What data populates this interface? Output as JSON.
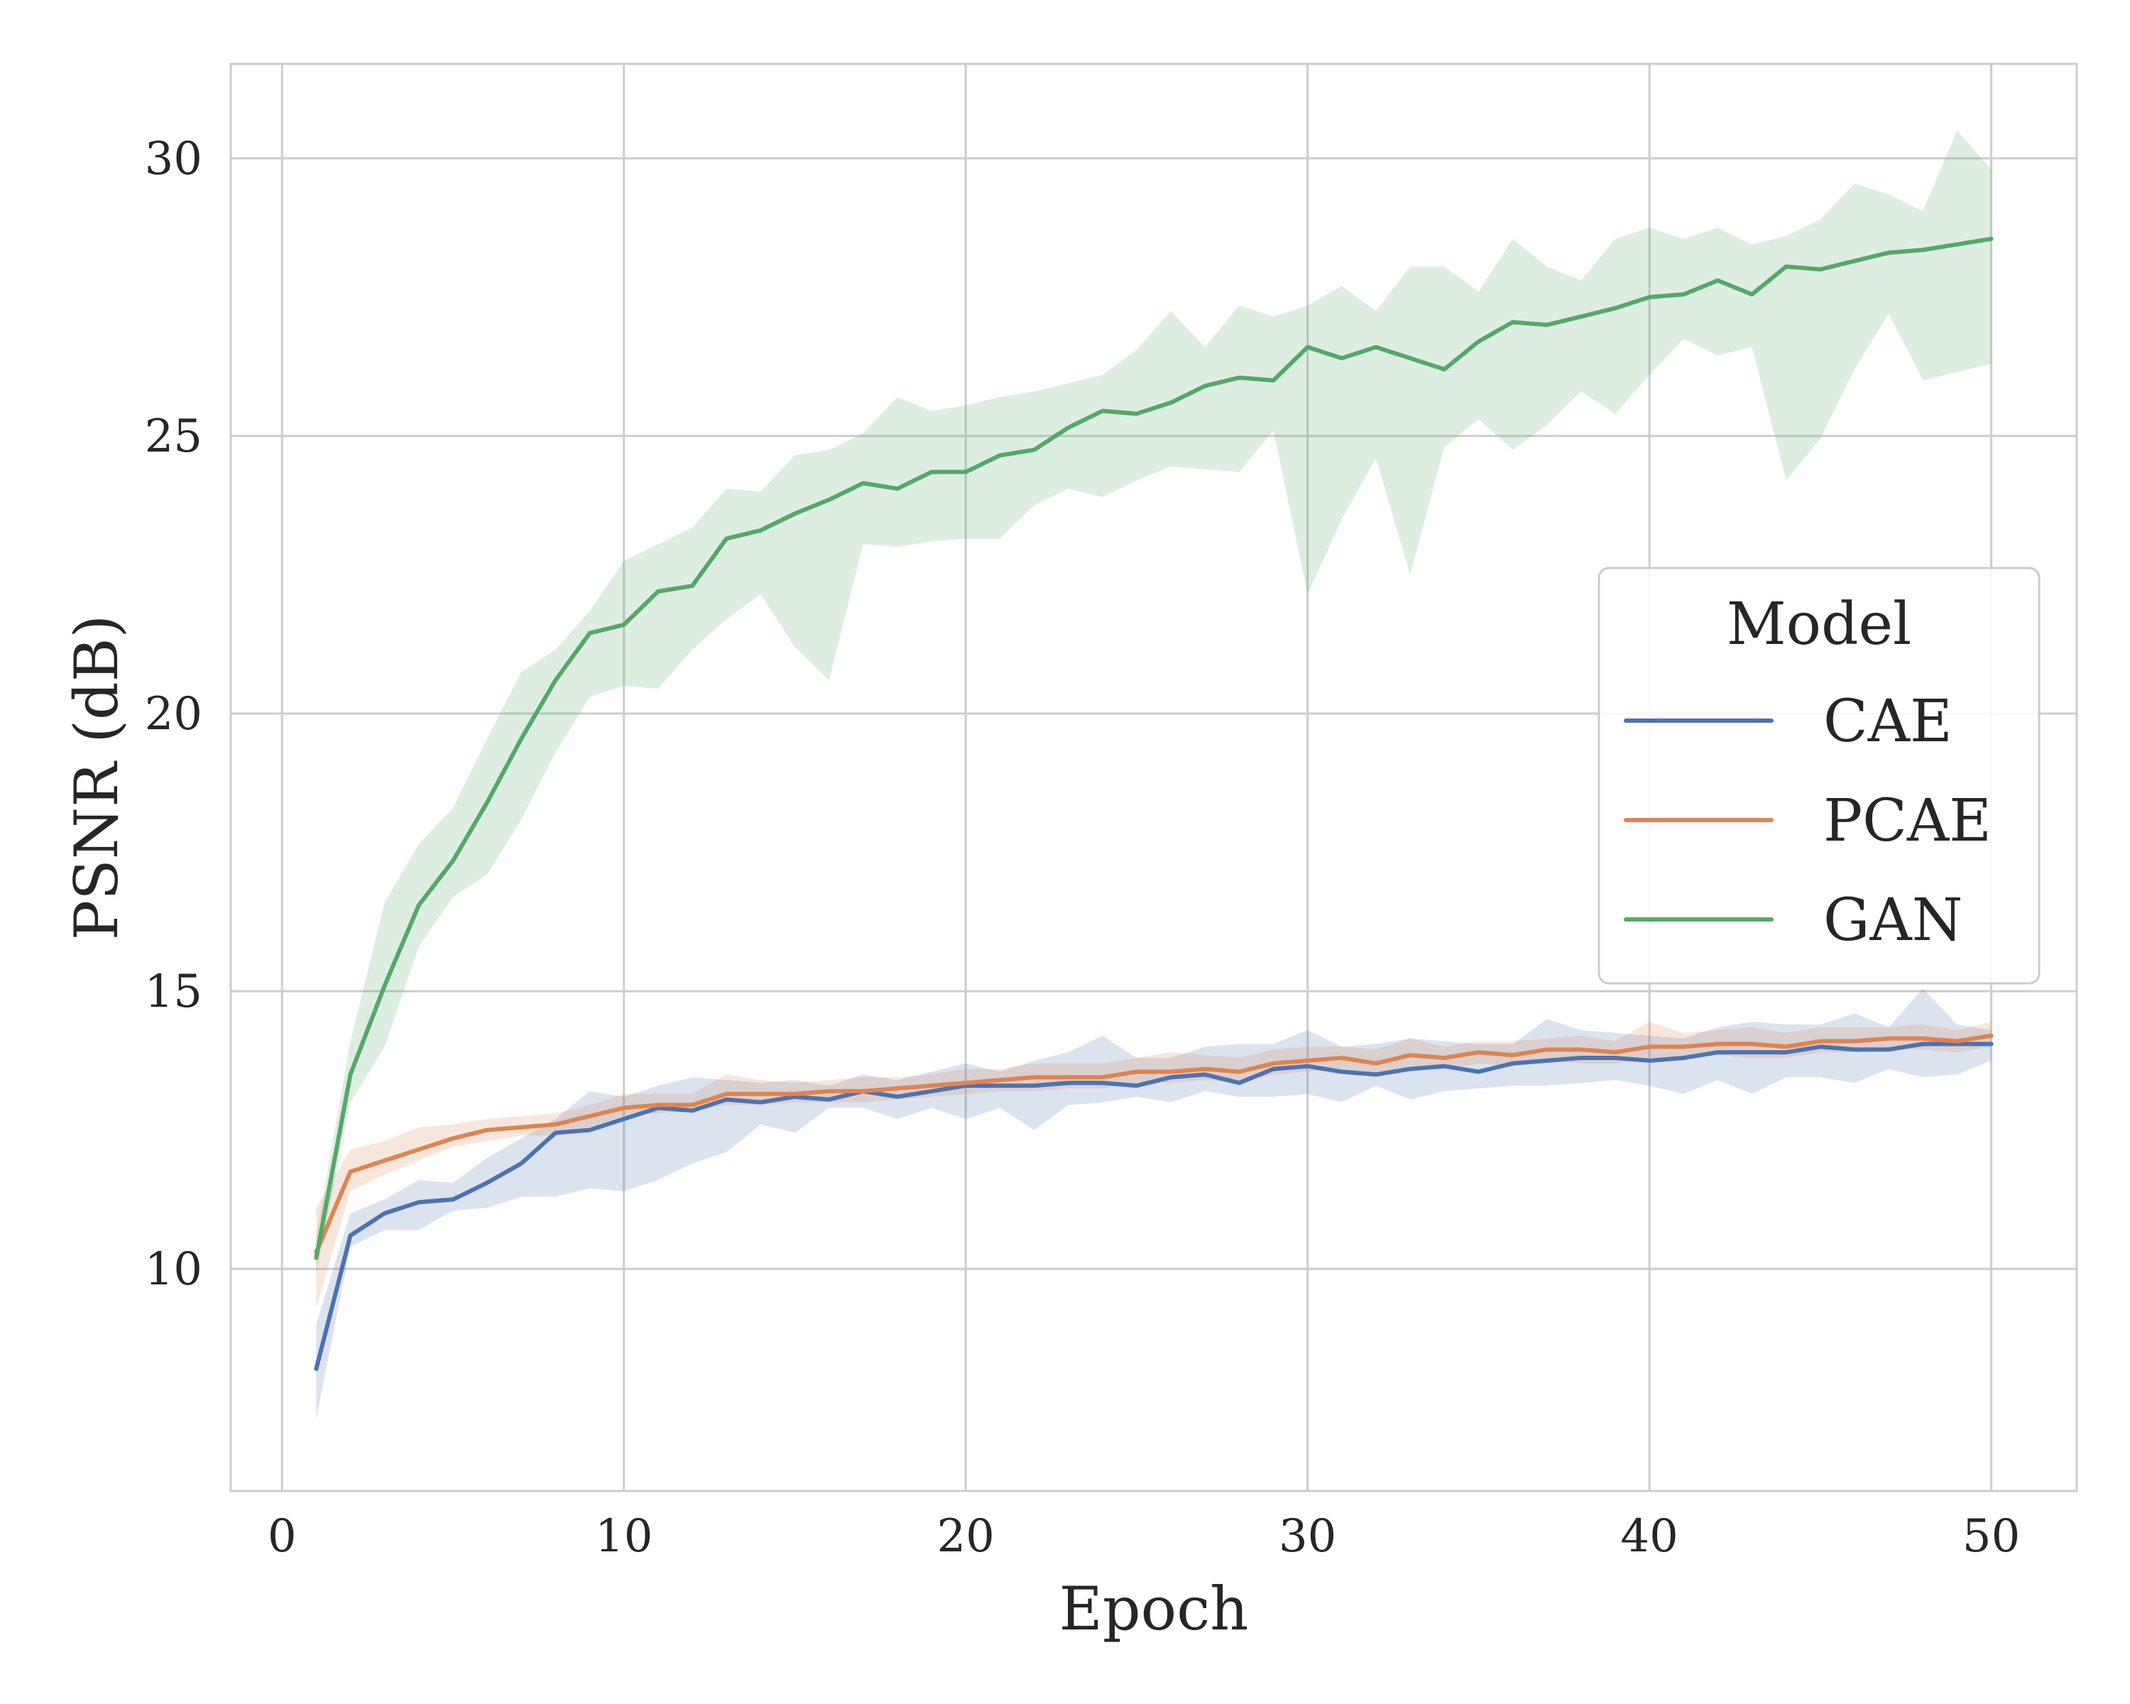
{
  "chart_data": {
    "type": "line",
    "xlabel": "Epoch",
    "ylabel": "PSNR (dB)",
    "xlim": [
      -1.5,
      52.5
    ],
    "ylim": [
      6.0,
      31.7
    ],
    "xticks": [
      0,
      10,
      20,
      30,
      40,
      50
    ],
    "yticks": [
      10,
      15,
      20,
      25,
      30
    ],
    "grid": true,
    "legend": {
      "title": "Model",
      "placement": "center-right"
    },
    "x": [
      1,
      2,
      3,
      4,
      5,
      6,
      7,
      8,
      9,
      10,
      11,
      12,
      13,
      14,
      15,
      16,
      17,
      18,
      19,
      20,
      21,
      22,
      23,
      24,
      25,
      26,
      27,
      28,
      29,
      30,
      31,
      32,
      33,
      34,
      35,
      36,
      37,
      38,
      39,
      40,
      41,
      42,
      43,
      44,
      45,
      46,
      47,
      48,
      49,
      50
    ],
    "series": [
      {
        "name": "CAE",
        "color": "#4c72b0",
        "values": [
          8.2,
          10.6,
          11.0,
          11.2,
          11.25,
          11.55,
          11.9,
          12.45,
          12.5,
          12.7,
          12.9,
          12.85,
          13.05,
          13.0,
          13.1,
          13.05,
          13.2,
          13.1,
          13.2,
          13.3,
          13.3,
          13.3,
          13.35,
          13.35,
          13.3,
          13.45,
          13.5,
          13.35,
          13.6,
          13.65,
          13.55,
          13.5,
          13.6,
          13.65,
          13.55,
          13.7,
          13.75,
          13.8,
          13.8,
          13.75,
          13.8,
          13.9,
          13.9,
          13.9,
          14.0,
          13.95,
          13.95,
          14.05,
          14.05,
          14.05
        ],
        "band_low": [
          7.3,
          10.4,
          10.7,
          10.7,
          11.05,
          11.1,
          11.3,
          11.3,
          11.45,
          11.4,
          11.6,
          11.9,
          12.1,
          12.6,
          12.45,
          12.9,
          12.9,
          12.7,
          12.9,
          12.7,
          12.9,
          12.5,
          12.95,
          13.0,
          13.1,
          13.0,
          13.2,
          13.1,
          13.1,
          13.15,
          13.0,
          13.3,
          13.05,
          13.2,
          13.25,
          13.3,
          13.3,
          13.35,
          13.4,
          13.3,
          13.15,
          13.4,
          13.15,
          13.45,
          13.45,
          13.35,
          13.6,
          13.45,
          13.5,
          13.75
        ],
        "band_high": [
          9.0,
          11.0,
          11.25,
          11.6,
          11.55,
          12.0,
          12.35,
          12.7,
          13.2,
          13.1,
          13.3,
          13.45,
          13.4,
          13.35,
          13.4,
          13.3,
          13.5,
          13.4,
          13.55,
          13.7,
          13.55,
          13.75,
          13.9,
          14.2,
          13.8,
          13.8,
          14.0,
          14.05,
          14.05,
          14.3,
          14.0,
          14.05,
          14.15,
          14.1,
          14.05,
          14.05,
          14.5,
          14.3,
          14.25,
          14.2,
          14.15,
          14.35,
          14.45,
          14.4,
          14.4,
          14.6,
          14.35,
          15.05,
          14.4,
          14.3
        ]
      },
      {
        "name": "PCAE",
        "color": "#dd8452",
        "values": [
          10.3,
          11.75,
          11.95,
          12.15,
          12.35,
          12.5,
          12.55,
          12.6,
          12.75,
          12.9,
          12.95,
          12.95,
          13.15,
          13.15,
          13.15,
          13.2,
          13.2,
          13.25,
          13.3,
          13.35,
          13.4,
          13.45,
          13.45,
          13.45,
          13.55,
          13.55,
          13.6,
          13.55,
          13.7,
          13.75,
          13.8,
          13.7,
          13.85,
          13.8,
          13.9,
          13.85,
          13.95,
          13.95,
          13.9,
          14.0,
          14.0,
          14.05,
          14.05,
          14.0,
          14.1,
          14.1,
          14.15,
          14.15,
          14.1,
          14.2
        ],
        "band_low": [
          9.3,
          11.4,
          11.7,
          11.95,
          12.2,
          12.3,
          12.4,
          12.4,
          12.55,
          12.75,
          12.8,
          12.85,
          12.95,
          12.95,
          13.0,
          13.0,
          13.0,
          13.05,
          13.1,
          13.15,
          13.2,
          13.2,
          13.25,
          13.25,
          13.35,
          13.35,
          13.4,
          13.35,
          13.5,
          13.55,
          13.6,
          13.5,
          13.65,
          13.6,
          13.7,
          13.65,
          13.75,
          13.7,
          13.7,
          13.8,
          13.8,
          13.85,
          13.8,
          13.8,
          13.9,
          13.9,
          13.95,
          13.95,
          13.9,
          14.0
        ],
        "band_high": [
          11.1,
          12.15,
          12.3,
          12.55,
          12.6,
          12.7,
          12.75,
          12.8,
          12.95,
          13.15,
          13.15,
          13.15,
          13.5,
          13.4,
          13.35,
          13.4,
          13.45,
          13.45,
          13.5,
          13.6,
          13.6,
          13.7,
          13.7,
          13.7,
          13.8,
          13.9,
          13.85,
          13.8,
          13.95,
          14.0,
          14.0,
          13.95,
          14.15,
          14.0,
          14.1,
          14.1,
          14.15,
          14.2,
          14.1,
          14.45,
          14.25,
          14.3,
          14.35,
          14.25,
          14.35,
          14.35,
          14.35,
          14.4,
          14.3,
          14.45
        ]
      },
      {
        "name": "GAN",
        "color": "#55a868",
        "values": [
          10.2,
          13.5,
          15.1,
          16.55,
          17.35,
          18.4,
          19.55,
          20.6,
          21.45,
          21.6,
          22.2,
          22.3,
          23.15,
          23.3,
          23.6,
          23.85,
          24.15,
          24.05,
          24.35,
          24.35,
          24.65,
          24.75,
          25.15,
          25.45,
          25.4,
          25.6,
          25.9,
          26.05,
          26.0,
          26.6,
          26.4,
          26.6,
          26.4,
          26.2,
          26.7,
          27.05,
          27.0,
          27.15,
          27.3,
          27.5,
          27.55,
          27.8,
          27.55,
          28.05,
          28.0,
          28.15,
          28.3,
          28.35,
          28.45,
          28.55
        ],
        "band_low": [
          9.9,
          13.0,
          14.0,
          15.8,
          16.7,
          17.1,
          18.1,
          19.3,
          20.3,
          20.5,
          20.45,
          21.15,
          21.7,
          22.15,
          21.2,
          20.6,
          23.05,
          23.0,
          23.1,
          23.15,
          23.15,
          23.75,
          24.05,
          23.9,
          24.2,
          24.45,
          24.4,
          24.35,
          25.1,
          22.15,
          23.5,
          24.6,
          22.5,
          24.8,
          25.3,
          24.75,
          25.2,
          25.8,
          25.4,
          26.1,
          26.75,
          26.45,
          26.6,
          24.2,
          24.95,
          26.2,
          27.2,
          26.0,
          26.15,
          26.3
        ],
        "band_high": [
          10.6,
          14.1,
          16.6,
          17.65,
          18.3,
          19.55,
          20.75,
          21.15,
          21.85,
          22.75,
          23.05,
          23.35,
          24.05,
          24.0,
          24.65,
          24.75,
          25.05,
          25.7,
          25.45,
          25.55,
          25.7,
          25.8,
          25.95,
          26.1,
          26.55,
          27.25,
          26.6,
          27.35,
          27.15,
          27.35,
          27.7,
          27.25,
          28.05,
          28.05,
          27.6,
          28.55,
          28.05,
          27.8,
          28.55,
          28.75,
          28.55,
          28.75,
          28.45,
          28.6,
          28.9,
          29.55,
          29.35,
          29.05,
          30.5,
          29.8
        ]
      }
    ]
  }
}
